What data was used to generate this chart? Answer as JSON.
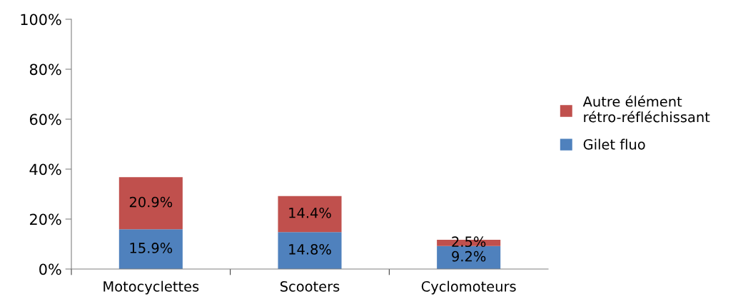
{
  "chart_data": {
    "type": "bar",
    "stacked": true,
    "categories": [
      "Motocyclettes",
      "Scooters",
      "Cyclomoteurs"
    ],
    "series": [
      {
        "name": "Gilet fluo",
        "color": "#4f81bd",
        "values": [
          15.9,
          14.8,
          9.2
        ],
        "value_labels": [
          "15.9%",
          "14.8%",
          "9.2%"
        ]
      },
      {
        "name": "Autre élément rétro-réfléchissant",
        "color": "#c0504d",
        "values": [
          20.9,
          14.4,
          2.5
        ],
        "value_labels": [
          "20.9%",
          "14.4%",
          "2.5%"
        ]
      }
    ],
    "ylim": [
      0,
      100
    ],
    "yticks": [
      {
        "value": 0,
        "label": "0%"
      },
      {
        "value": 20,
        "label": "20%"
      },
      {
        "value": 40,
        "label": "40%"
      },
      {
        "value": 60,
        "label": "60%"
      },
      {
        "value": 80,
        "label": "80%"
      },
      {
        "value": 100,
        "label": "100%"
      }
    ],
    "grid": false,
    "legend": "right"
  }
}
